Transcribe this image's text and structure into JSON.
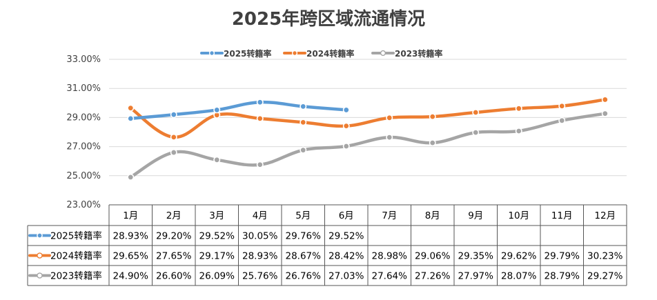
{
  "chart_data": {
    "type": "line",
    "title": "2025年跨区域流通情况",
    "categories": [
      "1月",
      "2月",
      "3月",
      "4月",
      "5月",
      "6月",
      "7月",
      "8月",
      "9月",
      "10月",
      "11月",
      "12月"
    ],
    "ylim": [
      23,
      33
    ],
    "yticks": [
      23,
      25,
      27,
      29,
      31,
      33
    ],
    "ytick_labels": [
      "23.00%",
      "25.00%",
      "27.00%",
      "29.00%",
      "31.00%",
      "33.00%"
    ],
    "legend_position": "top-center",
    "series": [
      {
        "name": "2025转籍率",
        "color": "#5b9bd5",
        "values": [
          28.93,
          29.2,
          29.52,
          30.05,
          29.76,
          29.52,
          null,
          null,
          null,
          null,
          null,
          null
        ],
        "labels": [
          "28.93%",
          "29.20%",
          "29.52%",
          "30.05%",
          "29.76%",
          "29.52%",
          "",
          "",
          "",
          "",
          "",
          ""
        ]
      },
      {
        "name": "2024转籍率",
        "color": "#ed7d31",
        "values": [
          29.65,
          27.65,
          29.17,
          28.93,
          28.67,
          28.42,
          28.98,
          29.06,
          29.35,
          29.62,
          29.79,
          30.23
        ],
        "labels": [
          "29.65%",
          "27.65%",
          "29.17%",
          "28.93%",
          "28.67%",
          "28.42%",
          "28.98%",
          "29.06%",
          "29.35%",
          "29.62%",
          "29.79%",
          "30.23%"
        ]
      },
      {
        "name": "2023转籍率",
        "color": "#a5a5a5",
        "values": [
          24.9,
          26.6,
          26.09,
          25.76,
          26.76,
          27.03,
          27.64,
          27.26,
          27.97,
          28.07,
          28.79,
          29.27
        ],
        "labels": [
          "24.90%",
          "26.60%",
          "26.09%",
          "25.76%",
          "26.76%",
          "27.03%",
          "27.64%",
          "27.26%",
          "27.97%",
          "28.07%",
          "28.79%",
          "29.27%"
        ]
      }
    ]
  }
}
